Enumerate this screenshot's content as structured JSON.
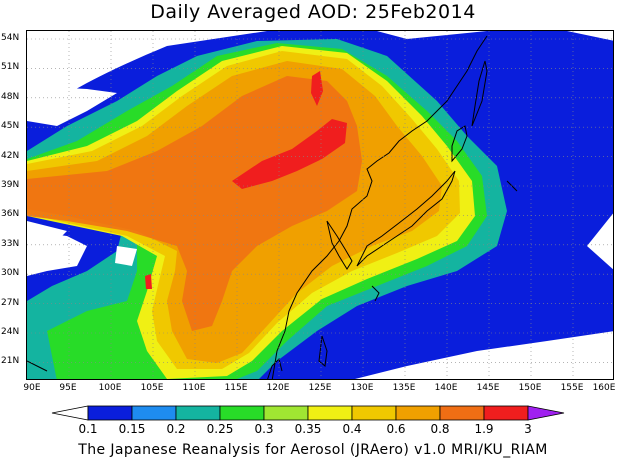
{
  "title": "Daily Averaged AOD: 25Feb2014",
  "footer": "The Japanese Reanalysis for Aerosol (JRAero) v1.0 MRI/KU_RIAM",
  "lat_labels": [
    "54N",
    "51N",
    "48N",
    "45N",
    "42N",
    "39N",
    "36N",
    "33N",
    "30N",
    "27N",
    "24N",
    "21N"
  ],
  "lon_labels": [
    "90E",
    "95E",
    "100E",
    "105E",
    "110E",
    "115E",
    "120E",
    "125E",
    "130E",
    "135E",
    "140E",
    "145E",
    "150E",
    "155E",
    "160E"
  ],
  "colorbar": {
    "labels": [
      "0.1",
      "0.15",
      "0.2",
      "0.25",
      "0.3",
      "0.35",
      "0.4",
      "0.6",
      "0.8",
      "1.9",
      "3"
    ],
    "colors": [
      "#ffffff",
      "#0a1edc",
      "#1e8cf0",
      "#14b4a0",
      "#28dc28",
      "#a0e632",
      "#f0f014",
      "#f0c800",
      "#f0a000",
      "#f06e14",
      "#f01e1e",
      "#a020f0"
    ]
  }
}
